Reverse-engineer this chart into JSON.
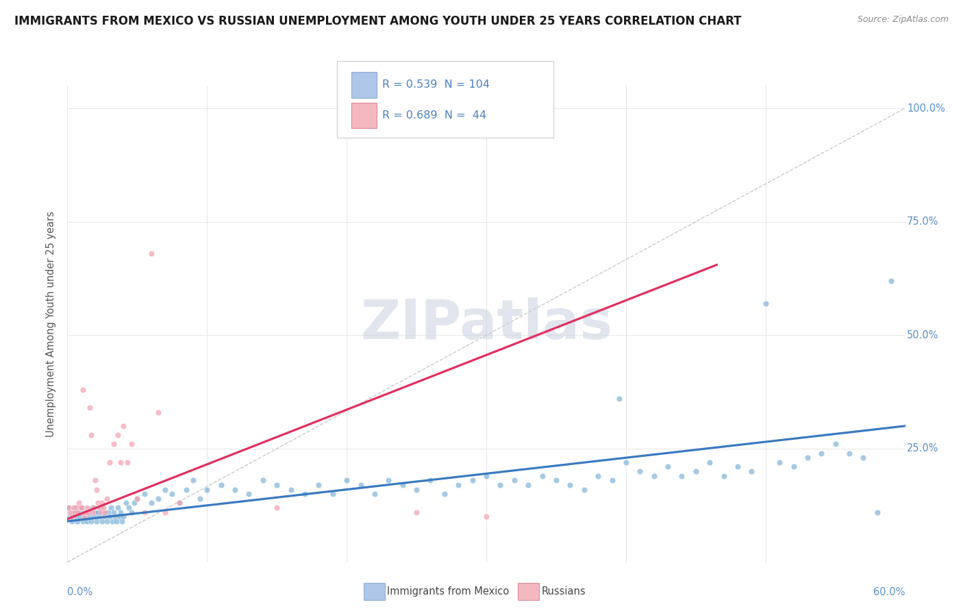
{
  "title": "IMMIGRANTS FROM MEXICO VS RUSSIAN UNEMPLOYMENT AMONG YOUTH UNDER 25 YEARS CORRELATION CHART",
  "source": "Source: ZipAtlas.com",
  "ylabel": "Unemployment Among Youth under 25 years",
  "y_ticks": [
    0.0,
    0.25,
    0.5,
    0.75,
    1.0
  ],
  "y_tick_labels": [
    "",
    "25.0%",
    "50.0%",
    "75.0%",
    "100.0%"
  ],
  "legend_box": {
    "series1_color": "#aec6e8",
    "series1_border": "#8badd4",
    "series2_color": "#f4b8c1",
    "series2_border": "#e08898"
  },
  "series1": {
    "name": "Immigrants from Mexico",
    "color": "#7fb3d9",
    "trend_color": "#3a7abf",
    "trend_x": [
      0.0,
      0.6
    ],
    "trend_y": [
      0.09,
      0.3
    ],
    "points": [
      [
        0.001,
        0.12
      ],
      [
        0.002,
        0.1
      ],
      [
        0.003,
        0.09
      ],
      [
        0.004,
        0.11
      ],
      [
        0.005,
        0.12
      ],
      [
        0.006,
        0.1
      ],
      [
        0.007,
        0.09
      ],
      [
        0.008,
        0.11
      ],
      [
        0.009,
        0.1
      ],
      [
        0.01,
        0.12
      ],
      [
        0.011,
        0.09
      ],
      [
        0.012,
        0.11
      ],
      [
        0.013,
        0.1
      ],
      [
        0.014,
        0.09
      ],
      [
        0.015,
        0.11
      ],
      [
        0.016,
        0.1
      ],
      [
        0.017,
        0.09
      ],
      [
        0.018,
        0.12
      ],
      [
        0.019,
        0.1
      ],
      [
        0.02,
        0.11
      ],
      [
        0.021,
        0.09
      ],
      [
        0.022,
        0.11
      ],
      [
        0.023,
        0.1
      ],
      [
        0.024,
        0.12
      ],
      [
        0.025,
        0.09
      ],
      [
        0.026,
        0.11
      ],
      [
        0.027,
        0.1
      ],
      [
        0.028,
        0.09
      ],
      [
        0.029,
        0.11
      ],
      [
        0.03,
        0.1
      ],
      [
        0.031,
        0.12
      ],
      [
        0.032,
        0.09
      ],
      [
        0.033,
        0.11
      ],
      [
        0.034,
        0.1
      ],
      [
        0.035,
        0.09
      ],
      [
        0.036,
        0.12
      ],
      [
        0.037,
        0.1
      ],
      [
        0.038,
        0.11
      ],
      [
        0.039,
        0.09
      ],
      [
        0.04,
        0.1
      ],
      [
        0.042,
        0.13
      ],
      [
        0.044,
        0.12
      ],
      [
        0.046,
        0.11
      ],
      [
        0.048,
        0.13
      ],
      [
        0.05,
        0.14
      ],
      [
        0.055,
        0.15
      ],
      [
        0.06,
        0.13
      ],
      [
        0.065,
        0.14
      ],
      [
        0.07,
        0.16
      ],
      [
        0.075,
        0.15
      ],
      [
        0.08,
        0.13
      ],
      [
        0.085,
        0.16
      ],
      [
        0.09,
        0.18
      ],
      [
        0.095,
        0.14
      ],
      [
        0.1,
        0.16
      ],
      [
        0.11,
        0.17
      ],
      [
        0.12,
        0.16
      ],
      [
        0.13,
        0.15
      ],
      [
        0.14,
        0.18
      ],
      [
        0.15,
        0.17
      ],
      [
        0.16,
        0.16
      ],
      [
        0.17,
        0.15
      ],
      [
        0.18,
        0.17
      ],
      [
        0.19,
        0.15
      ],
      [
        0.2,
        0.18
      ],
      [
        0.21,
        0.17
      ],
      [
        0.22,
        0.15
      ],
      [
        0.23,
        0.18
      ],
      [
        0.24,
        0.17
      ],
      [
        0.25,
        0.16
      ],
      [
        0.26,
        0.18
      ],
      [
        0.27,
        0.15
      ],
      [
        0.28,
        0.17
      ],
      [
        0.29,
        0.18
      ],
      [
        0.3,
        0.19
      ],
      [
        0.31,
        0.17
      ],
      [
        0.32,
        0.18
      ],
      [
        0.33,
        0.17
      ],
      [
        0.34,
        0.19
      ],
      [
        0.35,
        0.18
      ],
      [
        0.36,
        0.17
      ],
      [
        0.37,
        0.16
      ],
      [
        0.38,
        0.19
      ],
      [
        0.39,
        0.18
      ],
      [
        0.395,
        0.36
      ],
      [
        0.4,
        0.22
      ],
      [
        0.41,
        0.2
      ],
      [
        0.42,
        0.19
      ],
      [
        0.43,
        0.21
      ],
      [
        0.44,
        0.19
      ],
      [
        0.45,
        0.2
      ],
      [
        0.46,
        0.22
      ],
      [
        0.47,
        0.19
      ],
      [
        0.48,
        0.21
      ],
      [
        0.49,
        0.2
      ],
      [
        0.5,
        0.57
      ],
      [
        0.51,
        0.22
      ],
      [
        0.52,
        0.21
      ],
      [
        0.53,
        0.23
      ],
      [
        0.54,
        0.24
      ],
      [
        0.55,
        0.26
      ],
      [
        0.56,
        0.24
      ],
      [
        0.57,
        0.23
      ],
      [
        0.58,
        0.11
      ],
      [
        0.59,
        0.62
      ]
    ]
  },
  "series2": {
    "name": "Russians",
    "color": "#f4a0b0",
    "trend_color": "#e03060",
    "trend_x": [
      0.0,
      0.465
    ],
    "trend_y": [
      0.095,
      0.655
    ],
    "points": [
      [
        0.001,
        0.12
      ],
      [
        0.002,
        0.11
      ],
      [
        0.003,
        0.1
      ],
      [
        0.004,
        0.12
      ],
      [
        0.005,
        0.11
      ],
      [
        0.006,
        0.12
      ],
      [
        0.007,
        0.11
      ],
      [
        0.008,
        0.13
      ],
      [
        0.009,
        0.12
      ],
      [
        0.01,
        0.12
      ],
      [
        0.011,
        0.38
      ],
      [
        0.012,
        0.1
      ],
      [
        0.013,
        0.11
      ],
      [
        0.014,
        0.12
      ],
      [
        0.015,
        0.11
      ],
      [
        0.016,
        0.34
      ],
      [
        0.017,
        0.28
      ],
      [
        0.018,
        0.11
      ],
      [
        0.019,
        0.12
      ],
      [
        0.02,
        0.18
      ],
      [
        0.021,
        0.16
      ],
      [
        0.022,
        0.13
      ],
      [
        0.023,
        0.12
      ],
      [
        0.024,
        0.11
      ],
      [
        0.025,
        0.13
      ],
      [
        0.026,
        0.12
      ],
      [
        0.027,
        0.11
      ],
      [
        0.028,
        0.14
      ],
      [
        0.03,
        0.22
      ],
      [
        0.033,
        0.26
      ],
      [
        0.036,
        0.28
      ],
      [
        0.038,
        0.22
      ],
      [
        0.04,
        0.3
      ],
      [
        0.043,
        0.22
      ],
      [
        0.046,
        0.26
      ],
      [
        0.05,
        0.14
      ],
      [
        0.055,
        0.11
      ],
      [
        0.06,
        0.68
      ],
      [
        0.065,
        0.33
      ],
      [
        0.07,
        0.11
      ],
      [
        0.08,
        0.13
      ],
      [
        0.15,
        0.12
      ],
      [
        0.25,
        0.11
      ],
      [
        0.3,
        0.1
      ]
    ]
  },
  "diag_line": {
    "x": [
      0.0,
      0.6
    ],
    "y": [
      0.0,
      1.0
    ],
    "color": "#bbbbbb",
    "linestyle": "--"
  },
  "xlim": [
    0.0,
    0.6
  ],
  "ylim": [
    0.0,
    1.05
  ],
  "bg_color": "#ffffff",
  "grid_color": "#e8e8e8",
  "watermark": "ZIPatlas",
  "watermark_color": "#ccd4e4",
  "title_fontsize": 12,
  "source_fontsize": 9,
  "tick_color": "#5a8fc8",
  "ylabel_color": "#555555"
}
